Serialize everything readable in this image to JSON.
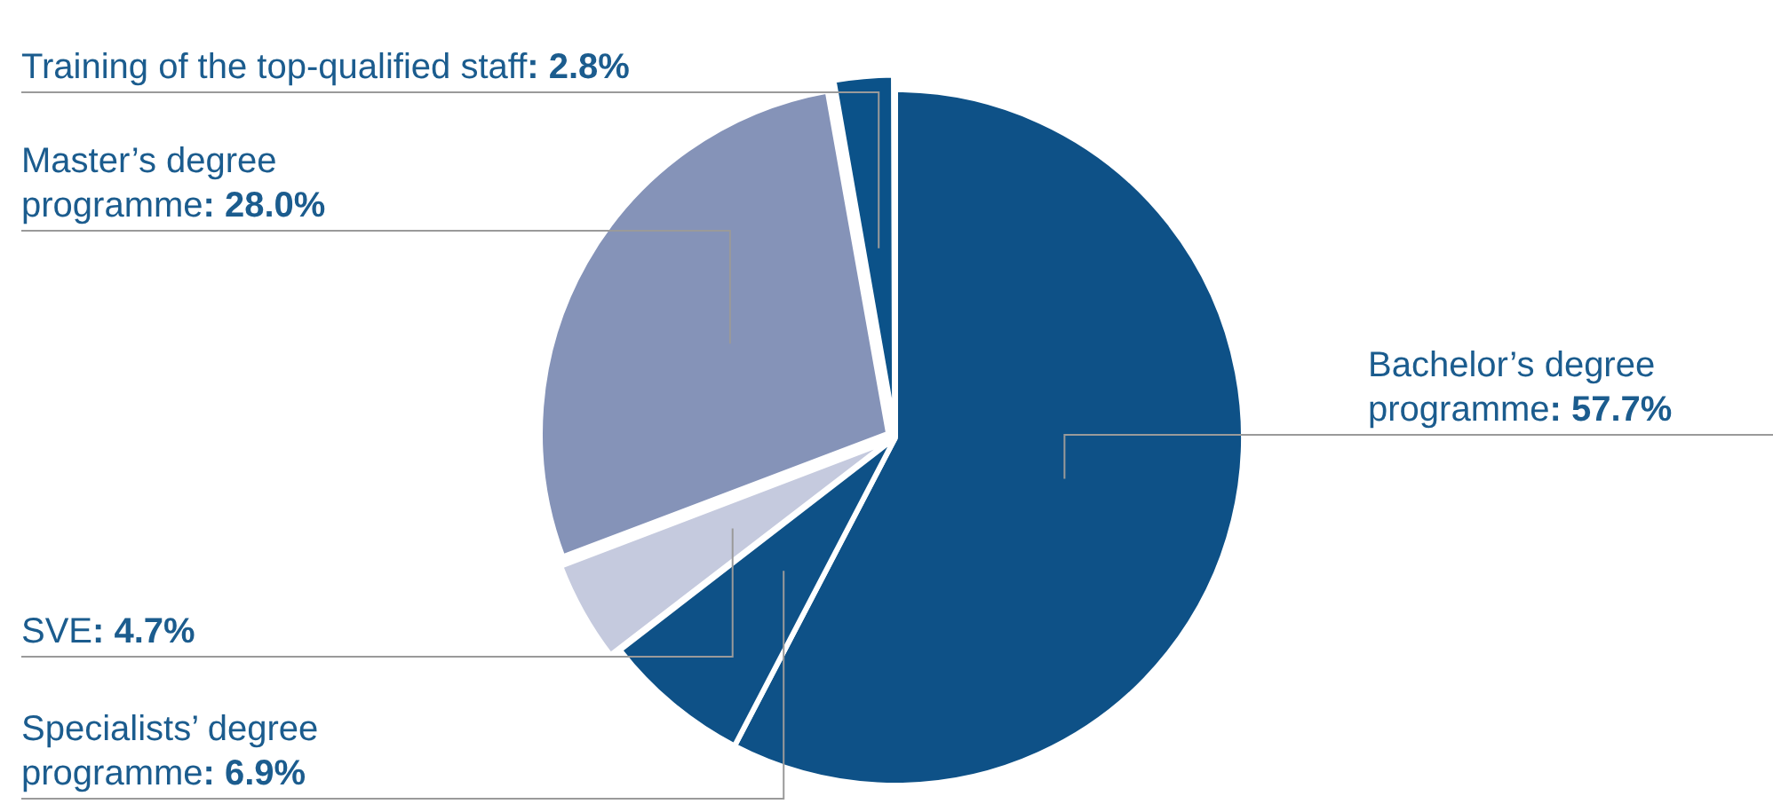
{
  "chart_data": {
    "type": "pie",
    "categories": [
      "Bachelor’s degree programme",
      "Specialists’ degree programme",
      "SVE",
      "Master’s degree programme",
      "Training of the top-qualified staff"
    ],
    "values": [
      57.7,
      6.9,
      4.7,
      28.0,
      2.8
    ],
    "colors": [
      "#0e5187",
      "#0e5187",
      "#c5cade",
      "#8593b8",
      "#0b5289"
    ],
    "value_labels": [
      ": 57.7%",
      ": 6.9%",
      ": 4.7%",
      ": 28.0%",
      ": 2.8%"
    ]
  }
}
